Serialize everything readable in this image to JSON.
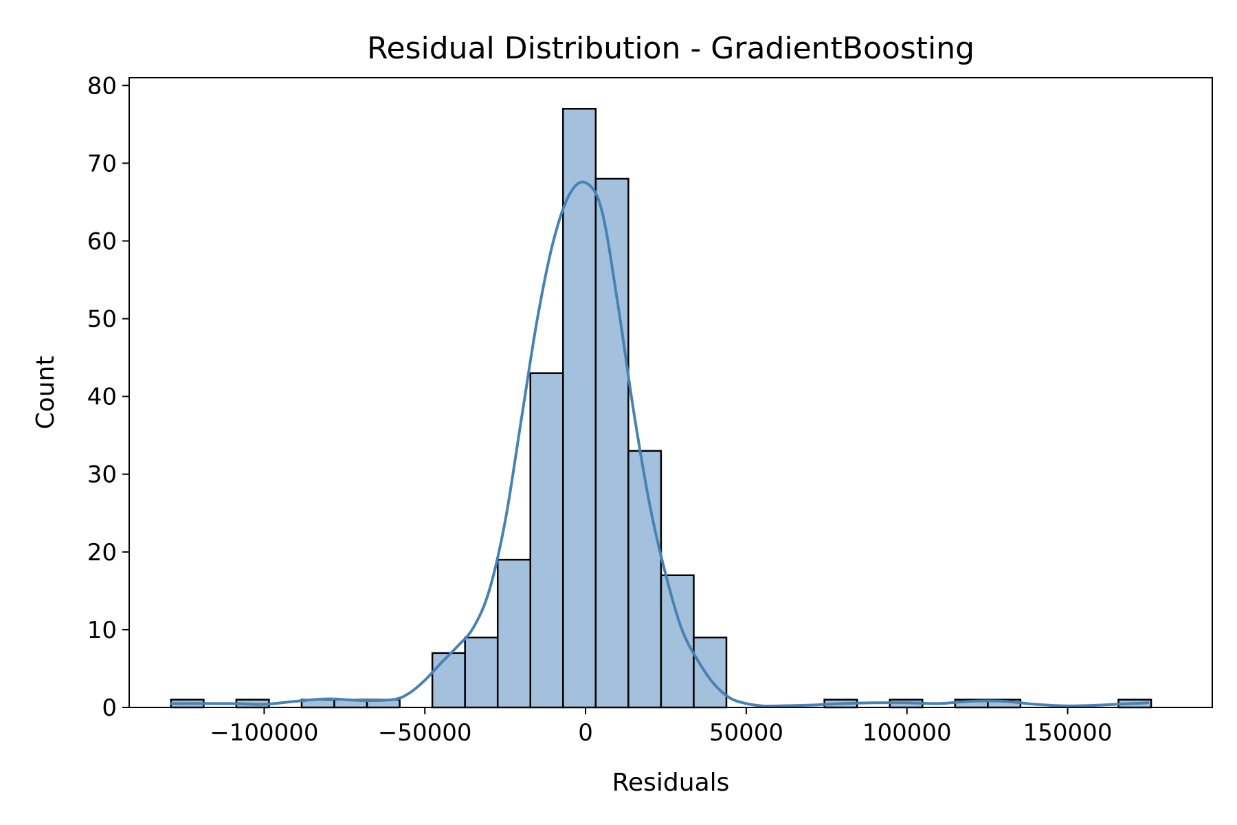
{
  "chart_data": {
    "type": "bar",
    "subtype": "histogram",
    "title": "Residual Distribution - GradientBoosting",
    "xlabel": "Residuals",
    "ylabel": "Count",
    "xlim": [
      -142000,
      195000
    ],
    "ylim": [
      0,
      81
    ],
    "x_ticks": [
      -100000,
      -50000,
      0,
      50000,
      100000,
      150000
    ],
    "x_tick_labels": [
      "−100000",
      "−50000",
      "0",
      "50000",
      "100000",
      "150000"
    ],
    "y_ticks": [
      0,
      10,
      20,
      30,
      40,
      50,
      60,
      70,
      80
    ],
    "y_tick_labels": [
      "0",
      "10",
      "20",
      "30",
      "40",
      "50",
      "60",
      "70",
      "80"
    ],
    "grid": false,
    "legend": "none",
    "colors": {
      "bar_fill": "#a3c1dc",
      "bar_edge": "#000000",
      "kde_line": "#4682b4"
    },
    "bin_width": 10166,
    "bins": [
      {
        "x0": -129000,
        "count": 1
      },
      {
        "x0": -118834,
        "count": 0
      },
      {
        "x0": -108668,
        "count": 1
      },
      {
        "x0": -98502,
        "count": 0
      },
      {
        "x0": -88336,
        "count": 1
      },
      {
        "x0": -78170,
        "count": 1
      },
      {
        "x0": -68004,
        "count": 1
      },
      {
        "x0": -57838,
        "count": 0
      },
      {
        "x0": -47672,
        "count": 7
      },
      {
        "x0": -37506,
        "count": 9
      },
      {
        "x0": -27340,
        "count": 19
      },
      {
        "x0": -17174,
        "count": 43
      },
      {
        "x0": -7008,
        "count": 77
      },
      {
        "x0": 3158,
        "count": 68
      },
      {
        "x0": 13324,
        "count": 33
      },
      {
        "x0": 23490,
        "count": 17
      },
      {
        "x0": 33656,
        "count": 9
      },
      {
        "x0": 43822,
        "count": 0
      },
      {
        "x0": 53988,
        "count": 0
      },
      {
        "x0": 64154,
        "count": 0
      },
      {
        "x0": 74320,
        "count": 1
      },
      {
        "x0": 84486,
        "count": 0
      },
      {
        "x0": 94652,
        "count": 1
      },
      {
        "x0": 104818,
        "count": 0
      },
      {
        "x0": 114984,
        "count": 1
      },
      {
        "x0": 125150,
        "count": 1
      },
      {
        "x0": 135316,
        "count": 0
      },
      {
        "x0": 145482,
        "count": 0
      },
      {
        "x0": 155648,
        "count": 0
      },
      {
        "x0": 165814,
        "count": 1
      }
    ],
    "kde": {
      "x": [
        -129000,
        -110000,
        -100000,
        -90000,
        -80000,
        -70000,
        -60000,
        -55000,
        -50000,
        -45000,
        -40000,
        -35000,
        -30000,
        -25000,
        -20000,
        -15000,
        -10000,
        -5000,
        0,
        5000,
        10000,
        15000,
        20000,
        25000,
        30000,
        35000,
        40000,
        45000,
        50000,
        55000,
        60000,
        70000,
        80000,
        90000,
        100000,
        110000,
        120000,
        130000,
        140000,
        150000,
        160000,
        175000
      ],
      "y": [
        0.5,
        0.5,
        0.4,
        0.8,
        1.1,
        0.9,
        1.0,
        1.8,
        3.5,
        5.7,
        7.8,
        10.2,
        15.0,
        24.0,
        37.0,
        50.0,
        60.0,
        66.0,
        67.5,
        64.0,
        52.0,
        38.0,
        26.0,
        17.0,
        10.0,
        6.0,
        3.0,
        1.2,
        0.5,
        0.2,
        0.2,
        0.3,
        0.5,
        0.6,
        0.6,
        0.5,
        0.8,
        0.8,
        0.4,
        0.2,
        0.3,
        0.6
      ]
    }
  }
}
